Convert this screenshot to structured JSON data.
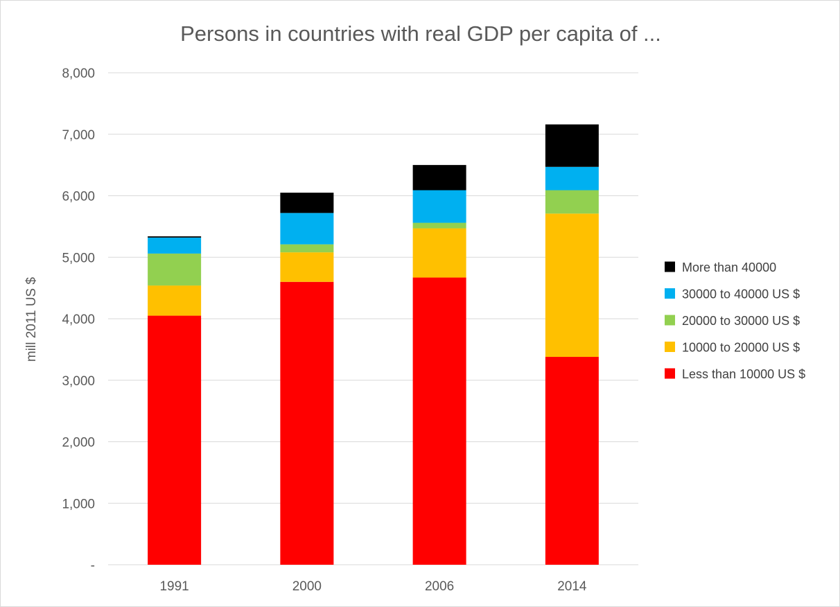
{
  "chart_data": {
    "type": "bar",
    "stacked": true,
    "title": "Persons in countries with real GDP per capita of ...",
    "xlabel": "",
    "ylabel": "mill 2011 US $",
    "categories": [
      "1991",
      "2000",
      "2006",
      "2014"
    ],
    "ylim": [
      0,
      8000
    ],
    "yticks": [
      {
        "value": 0,
        "label": "-"
      },
      {
        "value": 1000,
        "label": "1,000"
      },
      {
        "value": 2000,
        "label": "2,000"
      },
      {
        "value": 3000,
        "label": "3,000"
      },
      {
        "value": 4000,
        "label": "4,000"
      },
      {
        "value": 5000,
        "label": "5,000"
      },
      {
        "value": 6000,
        "label": "6,000"
      },
      {
        "value": 7000,
        "label": "7,000"
      },
      {
        "value": 8000,
        "label": "8,000"
      }
    ],
    "grid": true,
    "legend_position": "right",
    "series": [
      {
        "name": "Less than 10000 US $",
        "color": "#ff0000",
        "values": [
          4050,
          4600,
          4670,
          3380
        ]
      },
      {
        "name": "10000 to 20000 US $",
        "color": "#ffc000",
        "values": [
          490,
          480,
          800,
          2330
        ]
      },
      {
        "name": "20000 to 30000 US $",
        "color": "#92d050",
        "values": [
          520,
          130,
          90,
          380
        ]
      },
      {
        "name": "30000 to 40000 US $",
        "color": "#00b0f0",
        "values": [
          260,
          510,
          530,
          380
        ]
      },
      {
        "name": "More than 40000",
        "color": "#000000",
        "values": [
          20,
          330,
          410,
          690
        ]
      }
    ]
  }
}
